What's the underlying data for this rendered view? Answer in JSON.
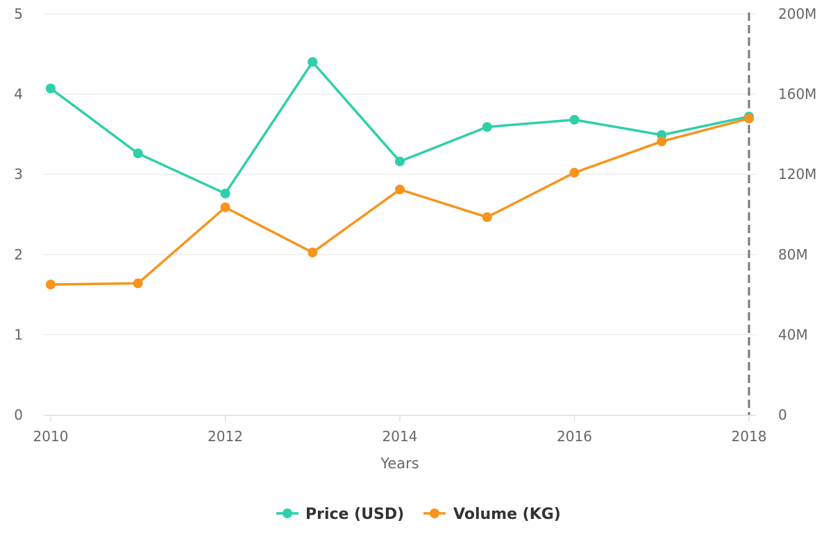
{
  "chart_data": {
    "type": "line",
    "title": "",
    "xlabel": "Years",
    "ylabel": "",
    "x": [
      2010,
      2011,
      2012,
      2013,
      2014,
      2015,
      2016,
      2017,
      2018
    ],
    "x_ticks": [
      "2010",
      "2012",
      "2014",
      "2016",
      "2018"
    ],
    "y_left_ticks": [
      "0",
      "1",
      "2",
      "3",
      "4",
      "5"
    ],
    "y_right_ticks": [
      "0",
      "40M",
      "80M",
      "120M",
      "160M",
      "200M"
    ],
    "ylim_left": [
      0,
      5
    ],
    "ylim_right": [
      0,
      200000000
    ],
    "grid": true,
    "legend_position": "bottom-center",
    "series": [
      {
        "name": "Price (USD)",
        "axis": "left",
        "color": "#2ecfa9",
        "values": [
          4.07,
          3.26,
          2.76,
          4.4,
          3.16,
          3.59,
          3.68,
          3.49,
          3.72
        ]
      },
      {
        "name": "Volume (KG)",
        "axis": "right",
        "color": "#f7941d",
        "values": [
          65000000,
          65600000,
          103500000,
          81000000,
          112400000,
          98600000,
          120800000,
          136400000,
          147800000
        ]
      }
    ],
    "highlight_line": {
      "x": 2018,
      "style": "dashed",
      "color": "#777777"
    }
  }
}
